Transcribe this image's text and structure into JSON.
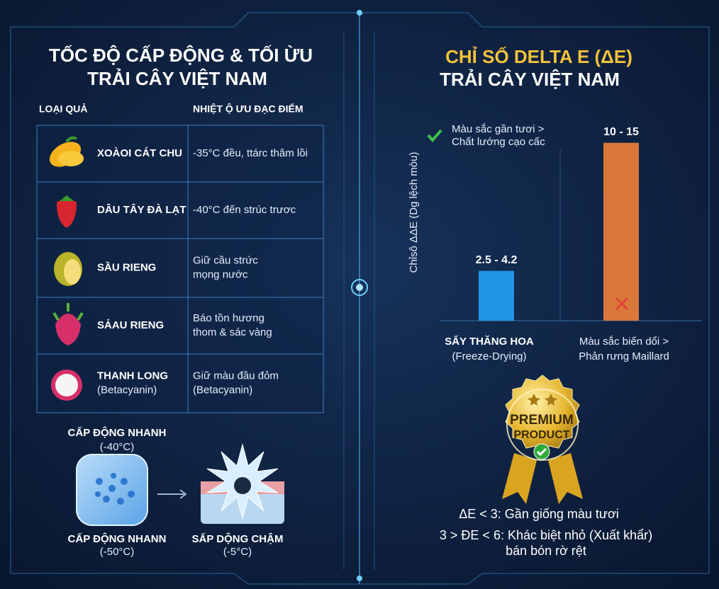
{
  "left": {
    "title": [
      "TỐC ĐỘ CẤP ĐỘNG & TỐI ỪU",
      "TRẢI CÂY VIỆT NAM"
    ],
    "table": {
      "headers": [
        "LOẠI QUẢ",
        "NHIỆT Ộ ƯU ĐẠC ĐIỂM"
      ],
      "rows": [
        {
          "name": [
            "XOÀOI CÁT CHU"
          ],
          "desc": [
            "-35°C đều, ttárc thâm lồi"
          ]
        },
        {
          "name": [
            "DÂU TÂY ĐÀ LẠT"
          ],
          "desc": [
            "-40°C đến strúc trươc"
          ]
        },
        {
          "name": [
            "SẦU RIENG"
          ],
          "desc": [
            "Giữ cầu strức",
            "mọng nước"
          ]
        },
        {
          "name": [
            "SẢAU RIENG"
          ],
          "desc": [
            "Báo tồn hương",
            "thom & sác vàng"
          ]
        },
        {
          "name": [
            "THANH LONG",
            "(Betacyanin)"
          ],
          "desc": [
            "Giữ màu đầu đỏm",
            "(Betacyanin)"
          ]
        }
      ]
    },
    "freezing": [
      {
        "title": "CẤP ĐỘNG NHANH",
        "temp": "(-40°C)"
      },
      {
        "title": "CẤP ĐỘNG NHANN",
        "temp": "(-50°C)"
      },
      {
        "title": "SẤP DỘNG CHẬM",
        "temp": "(-5°C)"
      }
    ]
  },
  "chart_data": {
    "type": "bar",
    "title": "CHỈ SỐ DELTA E (ΔE)",
    "subtitle": "TRẢI CÂY VIỆT NAM",
    "ylabel": "Chỉsô ΔΔE (Dg lệch mòu)",
    "annotation": [
      "Màu sắc gần tươi >",
      "Chất lướng cạo cấc"
    ],
    "categories": [
      "SẤY THĂNG HOA",
      "Màu sắc biến dổi >"
    ],
    "category_notes": [
      "(Freeze-Drying)",
      "Phản rưng Maillard"
    ],
    "values": [
      4.2,
      15
    ],
    "value_labels": [
      "2.5 - 4.2",
      "10 - 15"
    ],
    "colors": [
      "#2196e6",
      "#d9783a"
    ],
    "ylim": [
      0,
      16
    ]
  },
  "right": {
    "badge": [
      "PREMIUM",
      "PRODUCT"
    ],
    "notes": [
      "ΔE < 3: Gần giống màu tươi",
      "3 > ĐE < 6: Khác biệt nhỏ (Xuất khẩr)",
      "bán bón rờ rệt"
    ]
  }
}
